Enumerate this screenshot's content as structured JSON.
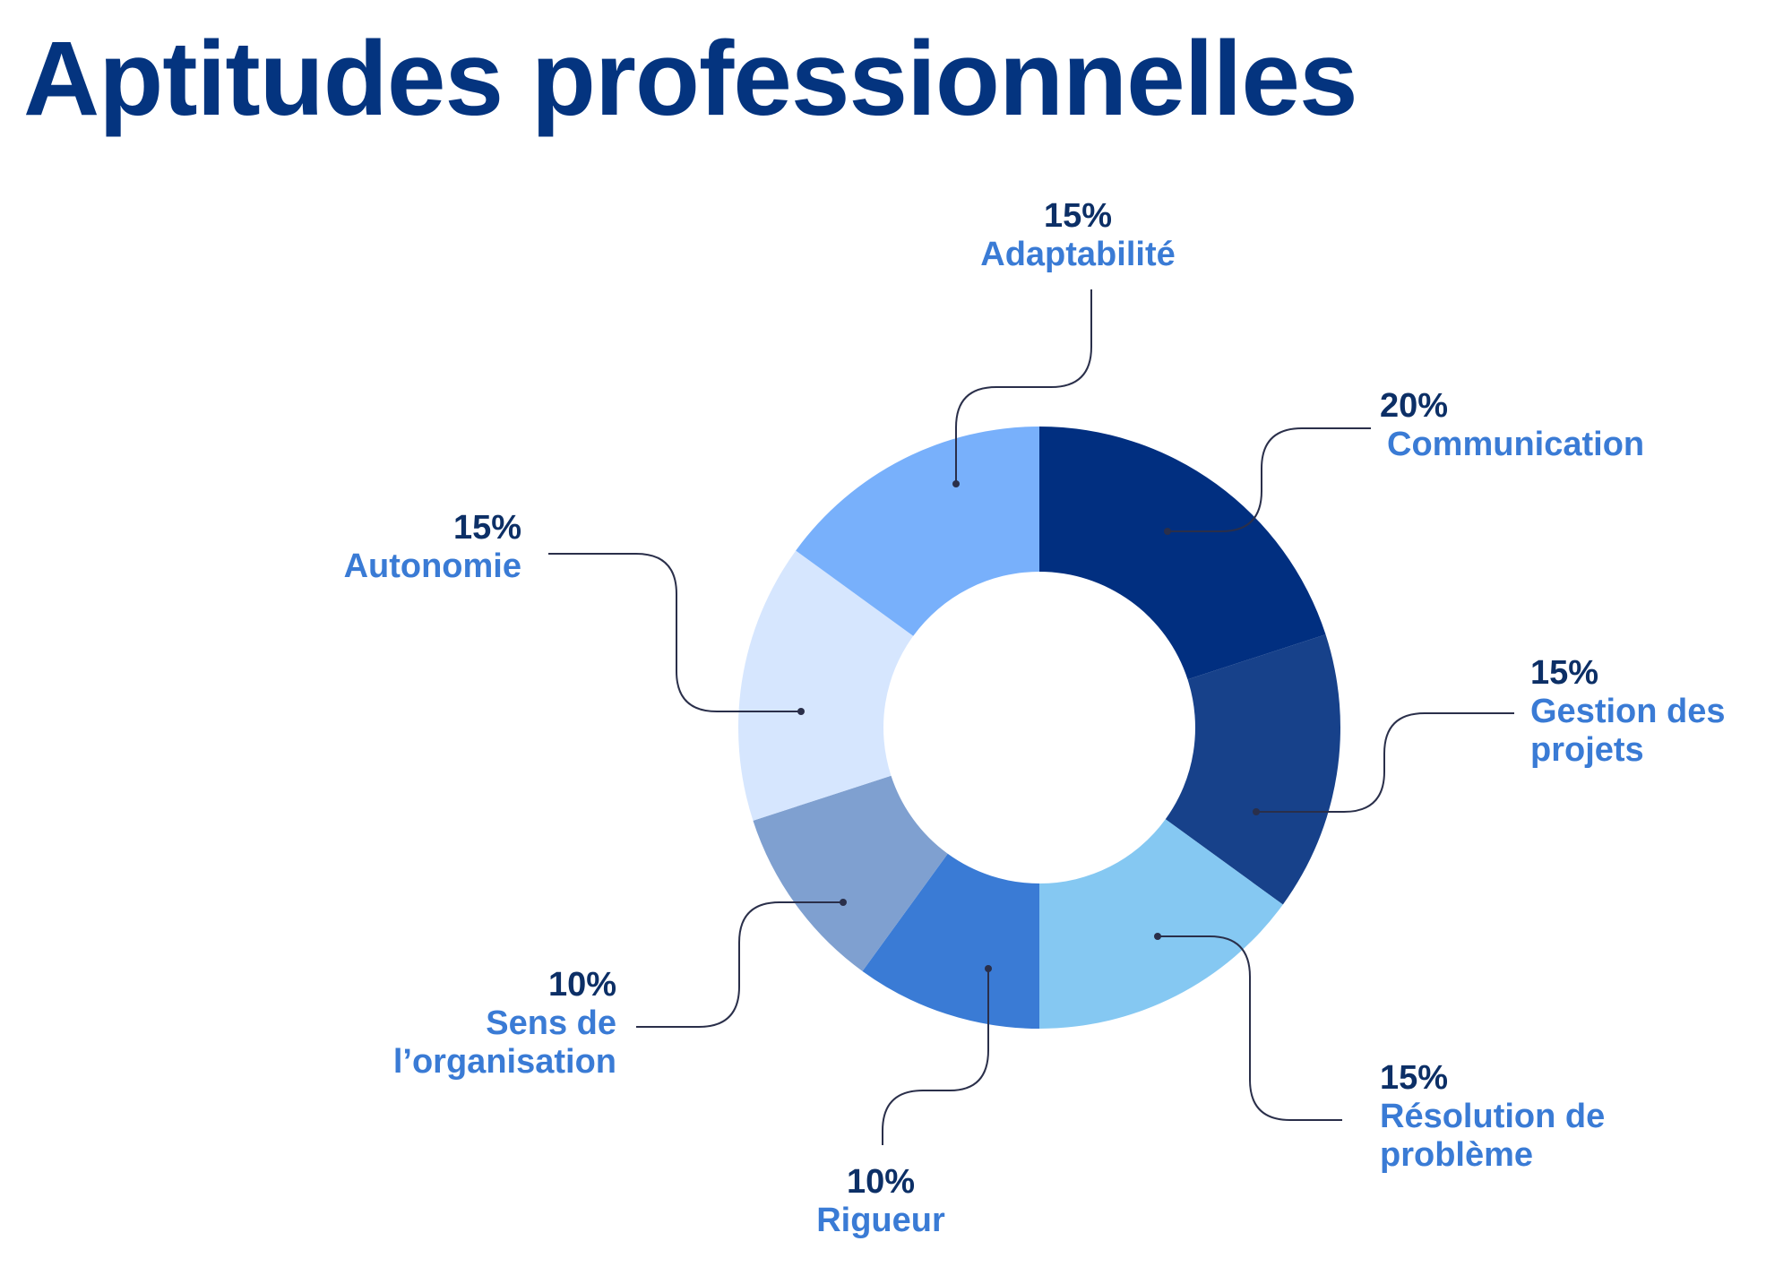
{
  "title": "Aptitudes professionnelles",
  "chart_data": {
    "type": "pie",
    "title": "Aptitudes professionnelles",
    "series": [
      {
        "name": "Communication",
        "value": 20,
        "label": "20%",
        "color": "#012f80"
      },
      {
        "name": "Gestion des projets",
        "value": 15,
        "label": "15%",
        "color": "#17418a"
      },
      {
        "name": "Résolution de problème",
        "value": 15,
        "label": "15%",
        "color": "#85c8f2"
      },
      {
        "name": "Rigueur",
        "value": 10,
        "label": "10%",
        "color": "#3a7bd5"
      },
      {
        "name": "Sens de l’organisation",
        "value": 10,
        "label": "10%",
        "color": "#7fa0d0"
      },
      {
        "name": "Autonomie",
        "value": 15,
        "label": "15%",
        "color": "#d6e6fe"
      },
      {
        "name": "Adaptabilité",
        "value": 15,
        "label": "15%",
        "color": "#78b0fb"
      }
    ],
    "labels": {
      "communication": {
        "pct": "20%",
        "name": "Communication"
      },
      "gestion": {
        "pct": "15%",
        "l1": "Gestion des",
        "l2": "projets"
      },
      "resolution": {
        "pct": "15%",
        "l1": "Résolution de",
        "l2": "problème"
      },
      "rigueur": {
        "pct": "10%",
        "name": "Rigueur"
      },
      "sens": {
        "pct": "10%",
        "l1": "Sens de",
        "l2": "l’organisation"
      },
      "autonomie": {
        "pct": "15%",
        "name": "Autonomie"
      },
      "adaptabilite": {
        "pct": "15%",
        "name": "Adaptabilité"
      }
    },
    "legend": "none",
    "grid": false
  }
}
